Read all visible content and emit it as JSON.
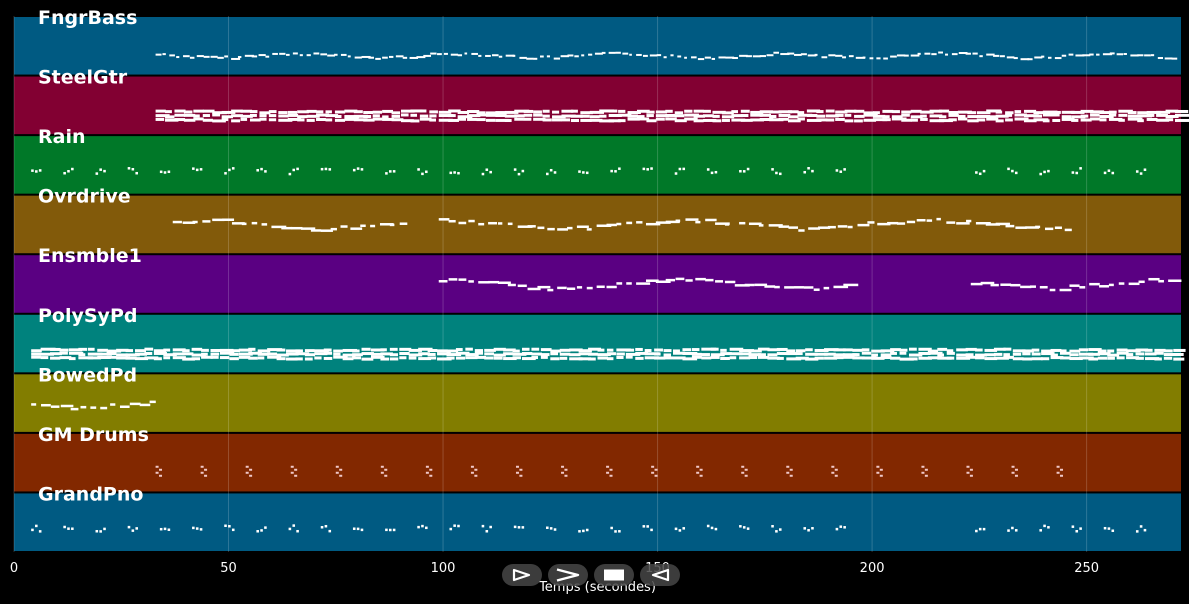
{
  "chart_data": {
    "type": "piano-roll",
    "xlabel": "Temps (secondes)",
    "xlim": [
      0,
      272
    ],
    "xticks": [
      0,
      50,
      100,
      150,
      200,
      250
    ],
    "grid": true,
    "tracks": [
      {
        "name": "FngrBass",
        "color": "#005a82",
        "segments": [
          [
            33,
            271
          ]
        ],
        "style": "bass"
      },
      {
        "name": "SteelGtr",
        "color": "#820032",
        "segments": [
          [
            33,
            271
          ]
        ],
        "style": "dense"
      },
      {
        "name": "Rain",
        "color": "#007828",
        "segments": [
          [
            4,
            192
          ],
          [
            224,
            266
          ]
        ],
        "style": "sparse"
      },
      {
        "name": "Ovrdrive",
        "color": "#825a0a",
        "segments": [
          [
            37,
            90
          ],
          [
            99,
            168
          ],
          [
            169,
            247
          ]
        ],
        "style": "melody"
      },
      {
        "name": "Ensmble1",
        "color": "#5a0082",
        "segments": [
          [
            99,
            194
          ],
          [
            223,
            271
          ]
        ],
        "style": "melody"
      },
      {
        "name": "PolySyPd",
        "color": "#00827d",
        "segments": [
          [
            4,
            271
          ]
        ],
        "style": "dense"
      },
      {
        "name": "BowedPd",
        "color": "#827d00",
        "segments": [
          [
            4,
            32
          ]
        ],
        "style": "melody"
      },
      {
        "name": "GM Drums",
        "color": "#822800",
        "segments": [
          [
            33,
            246
          ]
        ],
        "style": "drums"
      },
      {
        "name": "GrandPno",
        "color": "#005a82",
        "segments": [
          [
            4,
            192
          ],
          [
            224,
            266
          ]
        ],
        "style": "sparse"
      }
    ]
  },
  "controls": [
    {
      "name": "play",
      "icon": "play-outline-icon"
    },
    {
      "name": "fast-forward",
      "icon": "chevron-right-icon"
    },
    {
      "name": "stop",
      "icon": "stop-square-icon"
    },
    {
      "name": "rewind",
      "icon": "rewind-icon"
    }
  ]
}
